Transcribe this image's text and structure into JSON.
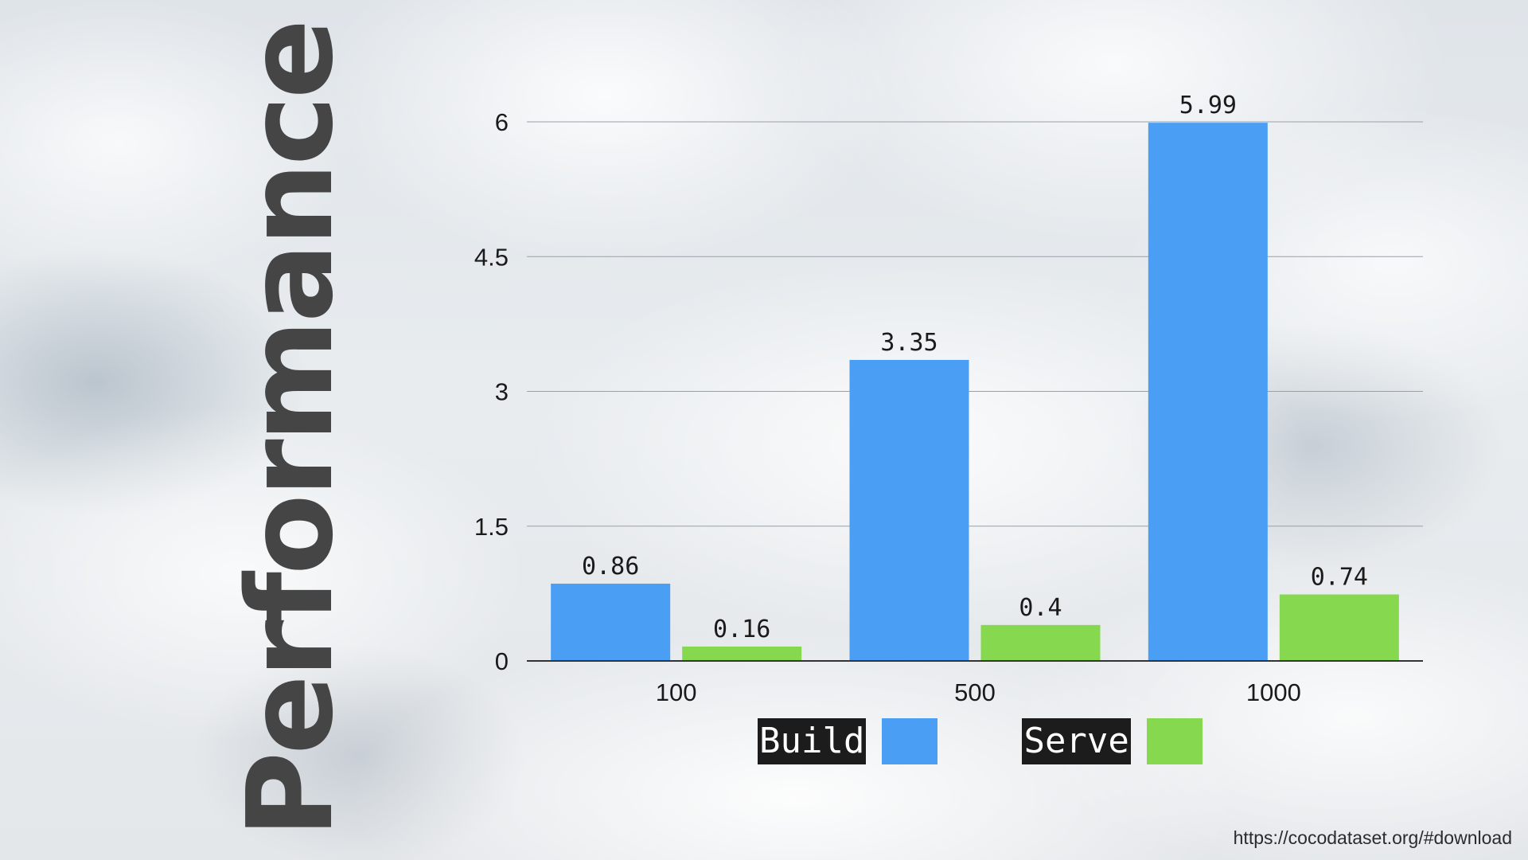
{
  "slide": {
    "title": "Performance",
    "source": "https://cocodataset.org/#download"
  },
  "chart_data": {
    "type": "bar",
    "title": "",
    "xlabel": "",
    "ylabel": "",
    "categories": [
      "100",
      "500",
      "1000"
    ],
    "series": [
      {
        "name": "Build",
        "values": [
          0.86,
          3.35,
          5.99
        ],
        "labels": [
          "0.86",
          "3.35",
          "5.99"
        ],
        "color": "#4a9ff5"
      },
      {
        "name": "Serve",
        "values": [
          0.16,
          0.4,
          0.74
        ],
        "labels": [
          "0.16",
          "0.4",
          "0.74"
        ],
        "color": "#86d84f"
      }
    ],
    "ylim": [
      0,
      6
    ],
    "yticks": [
      0,
      1.5,
      3,
      4.5,
      6
    ],
    "ytick_labels": [
      "0",
      "1.5",
      "3",
      "4.5",
      "6"
    ],
    "grid": true,
    "legend_position": "bottom"
  }
}
